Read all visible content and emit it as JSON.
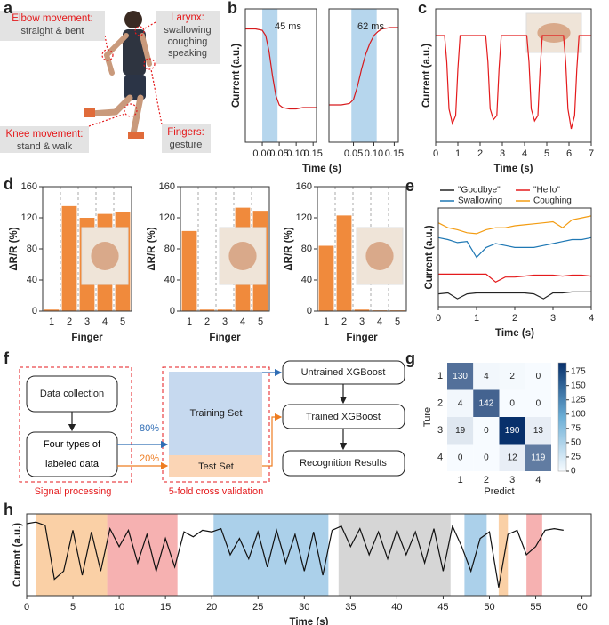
{
  "panel_labels": [
    "a",
    "b",
    "c",
    "d",
    "e",
    "f",
    "g",
    "h"
  ],
  "panel_a": [
    {
      "title": "Elbow movement:",
      "lines": [
        "straight & bent"
      ]
    },
    {
      "title": "Larynx:",
      "lines": [
        "swallowing",
        "coughing",
        "speaking"
      ]
    },
    {
      "title": "Knee movement:",
      "lines": [
        "stand & walk"
      ]
    },
    {
      "title": "Fingers:",
      "lines": [
        "gesture"
      ]
    }
  ],
  "diagram_f": {
    "data_collection": "Data collection",
    "labeled_data": "Four types of labeled data",
    "signal_processing": "Signal processing",
    "training_set": "Training Set",
    "test_set": "Test Set",
    "cross_validation": "5-fold cross validation",
    "train_share": "80%",
    "test_share": "20%",
    "untrained": "Untrained XGBoost",
    "trained": "Trained XGBoost",
    "results": "Recognition Results"
  },
  "chart_data": [
    {
      "type": "line",
      "ylabel": "Current (a.u.)",
      "xlabel": "Time (s)",
      "annotation": "45 ms",
      "color": "#d7191c",
      "x": [
        -0.05,
        -0.02,
        0,
        0.01,
        0.02,
        0.03,
        0.04,
        0.05,
        0.06,
        0.08,
        0.1,
        0.12,
        0.14,
        0.16
      ],
      "values": [
        0.85,
        0.85,
        0.84,
        0.8,
        0.68,
        0.5,
        0.35,
        0.28,
        0.26,
        0.25,
        0.25,
        0.26,
        0.26,
        0.26
      ],
      "spans": [
        {
          "range": [
            0,
            0.045
          ],
          "color": "#a9cfea"
        }
      ],
      "xlim": [
        -0.05,
        0.16
      ],
      "xticks": [
        {
          "value": 0,
          "label": "0.00"
        },
        0.05,
        {
          "value": 0.1,
          "label": "0.10"
        },
        0.15
      ],
      "ylim": [
        0,
        1
      ]
    },
    {
      "type": "line",
      "annotation": "62 ms",
      "color": "#d7191c",
      "x": [
        -0.01,
        0.02,
        0.04,
        0.05,
        0.06,
        0.07,
        0.08,
        0.09,
        0.1,
        0.11,
        0.12,
        0.14,
        0.16
      ],
      "values": [
        0.28,
        0.28,
        0.29,
        0.32,
        0.42,
        0.55,
        0.66,
        0.74,
        0.8,
        0.83,
        0.85,
        0.86,
        0.86
      ],
      "spans": [
        {
          "range": [
            0.045,
            0.107
          ],
          "color": "#a9cfea"
        }
      ],
      "xlim": [
        -0.01,
        0.16
      ],
      "xticks": [
        0.05,
        {
          "value": 0.1,
          "label": "0.10"
        },
        0.15
      ],
      "ylim": [
        0,
        1
      ]
    },
    {
      "type": "line",
      "ylabel": "Current (a.u.)",
      "xlabel": "Time (s)",
      "color": "#e41a1c",
      "x": [
        0,
        0.4,
        0.5,
        0.6,
        0.75,
        0.9,
        1.0,
        1.1,
        2.25,
        2.35,
        2.45,
        2.6,
        2.75,
        2.85,
        2.95,
        4.1,
        4.2,
        4.3,
        4.45,
        4.6,
        4.7,
        4.8,
        5.75,
        5.85,
        5.95,
        6.1,
        6.25,
        6.35,
        6.45,
        7
      ],
      "values": [
        0.8,
        0.8,
        0.6,
        0.25,
        0.14,
        0.2,
        0.55,
        0.8,
        0.8,
        0.6,
        0.25,
        0.17,
        0.2,
        0.55,
        0.8,
        0.8,
        0.6,
        0.25,
        0.16,
        0.2,
        0.55,
        0.8,
        0.8,
        0.6,
        0.25,
        0.1,
        0.2,
        0.55,
        0.8,
        0.8
      ],
      "xlim": [
        0,
        7
      ],
      "xticks": [
        0,
        1,
        2,
        3,
        4,
        5,
        6,
        7
      ],
      "ylim": [
        0,
        1
      ]
    },
    {
      "type": "bar",
      "ylabel": "ΔR/R (%)",
      "xlabel": "Finger",
      "color": "#f08a3c",
      "categories": [
        "1",
        "2",
        "3",
        "4",
        "5"
      ],
      "values": [
        2,
        135,
        120,
        125,
        127
      ],
      "ylim": [
        0,
        160
      ],
      "yticks": [
        0,
        40,
        80,
        120,
        160
      ]
    },
    {
      "type": "bar",
      "ylabel": "ΔR/R (%)",
      "xlabel": "Finger",
      "color": "#f08a3c",
      "categories": [
        "1",
        "2",
        "3",
        "4",
        "5"
      ],
      "values": [
        103,
        2,
        2,
        133,
        129
      ],
      "ylim": [
        0,
        160
      ],
      "yticks": [
        0,
        40,
        80,
        120,
        160
      ]
    },
    {
      "type": "bar",
      "ylabel": "ΔR/R (%)",
      "xlabel": "Finger",
      "color": "#f08a3c",
      "categories": [
        "1",
        "2",
        "3",
        "4",
        "5"
      ],
      "values": [
        84,
        123,
        2,
        1,
        1
      ],
      "ylim": [
        0,
        160
      ],
      "yticks": [
        0,
        40,
        80,
        120,
        160
      ]
    },
    {
      "type": "line",
      "ylabel": "Current (a.u.)",
      "xlabel": "Time (s)",
      "x": [
        0,
        0.25,
        0.5,
        0.75,
        1,
        1.25,
        1.5,
        1.75,
        2,
        2.25,
        2.5,
        2.75,
        3,
        3.25,
        3.5,
        3.75,
        4
      ],
      "series": [
        {
          "name": "\"Goodbye\"",
          "color": "#222222",
          "values": [
            0.13,
            0.14,
            0.08,
            0.13,
            0.14,
            0.14,
            0.14,
            0.14,
            0.14,
            0.14,
            0.13,
            0.08,
            0.14,
            0.14,
            0.15,
            0.15,
            0.15
          ]
        },
        {
          "name": "\"Hello\"",
          "color": "#e41a1c",
          "values": [
            0.33,
            0.33,
            0.33,
            0.33,
            0.33,
            0.33,
            0.25,
            0.3,
            0.3,
            0.31,
            0.32,
            0.32,
            0.32,
            0.31,
            0.32,
            0.32,
            0.31
          ]
        },
        {
          "name": "Swallowing",
          "color": "#1f78b4",
          "values": [
            0.7,
            0.68,
            0.65,
            0.66,
            0.5,
            0.6,
            0.64,
            0.62,
            0.6,
            0.6,
            0.6,
            0.62,
            0.64,
            0.66,
            0.68,
            0.68,
            0.7
          ]
        },
        {
          "name": "Coughing",
          "color": "#f39c12",
          "values": [
            0.85,
            0.8,
            0.78,
            0.75,
            0.74,
            0.78,
            0.8,
            0.8,
            0.82,
            0.83,
            0.84,
            0.85,
            0.86,
            0.8,
            0.88,
            0.9,
            0.92
          ]
        }
      ],
      "xlim": [
        0,
        4
      ],
      "xticks": [
        0,
        1,
        2,
        3,
        4
      ],
      "ylim": [
        0,
        1
      ]
    },
    {
      "type": "heatmap",
      "ylabel": "Ture",
      "xlabel": "Predict",
      "rows": [
        "1",
        "2",
        "3",
        "4"
      ],
      "columns": [
        "1",
        "2",
        "3",
        "4"
      ],
      "matrix": [
        [
          130,
          4,
          2,
          0
        ],
        [
          4,
          142,
          0,
          0
        ],
        [
          19,
          0,
          190,
          13
        ],
        [
          0,
          0,
          12,
          119
        ]
      ],
      "clim": [
        0,
        190
      ],
      "colorbar_ticks": [
        0,
        25,
        50,
        75,
        100,
        125,
        150,
        175
      ],
      "colormap": [
        "#f7fbff",
        "#08306b"
      ]
    },
    {
      "type": "line",
      "ylabel": "Current (a.u.)",
      "xlabel": "Time (s)",
      "color": "#111111",
      "x": [
        0,
        1,
        2,
        3,
        4,
        5,
        6,
        7,
        8,
        9,
        10,
        11,
        12,
        13,
        14,
        15,
        16,
        17,
        18,
        19,
        20,
        21,
        22,
        23,
        24,
        25,
        26,
        27,
        28,
        29,
        30,
        31,
        32,
        33,
        34,
        35,
        36,
        37,
        38,
        39,
        40,
        41,
        42,
        43,
        44,
        45,
        46,
        47,
        48,
        49,
        50,
        51,
        52,
        53,
        54,
        55,
        56,
        57,
        58
      ],
      "values": [
        0.88,
        0.9,
        0.86,
        0.2,
        0.3,
        0.8,
        0.25,
        0.78,
        0.3,
        0.82,
        0.6,
        0.8,
        0.4,
        0.75,
        0.3,
        0.7,
        0.35,
        0.78,
        0.72,
        0.8,
        0.78,
        0.82,
        0.5,
        0.7,
        0.45,
        0.78,
        0.35,
        0.8,
        0.4,
        0.75,
        0.3,
        0.78,
        0.25,
        0.8,
        0.85,
        0.6,
        0.82,
        0.5,
        0.78,
        0.45,
        0.8,
        0.5,
        0.78,
        0.4,
        0.82,
        0.3,
        0.85,
        0.6,
        0.3,
        0.7,
        0.78,
        0.1,
        0.75,
        0.8,
        0.5,
        0.6,
        0.8,
        0.82,
        0.8
      ],
      "spans": [
        {
          "range": [
            1,
            8.7
          ],
          "color": "#f9c896"
        },
        {
          "range": [
            8.7,
            16.3
          ],
          "color": "#f5a3a3"
        },
        {
          "range": [
            20.2,
            32.6
          ],
          "color": "#9cc8e6"
        },
        {
          "range": [
            33.7,
            45.8
          ],
          "color": "#cfcfcf"
        },
        {
          "range": [
            47.3,
            49.7
          ],
          "color": "#9cc8e6"
        },
        {
          "range": [
            51,
            52
          ],
          "color": "#f9c896"
        },
        {
          "range": [
            54,
            55.7
          ],
          "color": "#f5a3a3"
        }
      ],
      "xlim": [
        0,
        61
      ],
      "xticks": [
        0,
        5,
        10,
        15,
        20,
        25,
        30,
        35,
        40,
        45,
        50,
        55,
        60
      ],
      "ylim": [
        0,
        1
      ]
    }
  ]
}
